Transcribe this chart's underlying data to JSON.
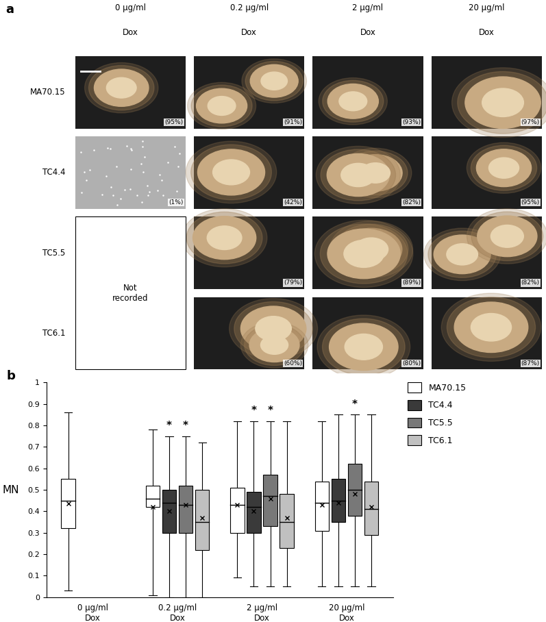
{
  "panel_a_label": "a",
  "panel_b_label": "b",
  "col_headers": [
    "0 μg/ml\nDox",
    "0.2 μg/ml\nDox",
    "2 μg/ml\nDox",
    "20 μg/ml\nDox"
  ],
  "row_labels": [
    "MA70.15",
    "TC4.4",
    "TC5.5",
    "TC6.1"
  ],
  "percentages": {
    "MA70.15": [
      "(95%)",
      "(91%)",
      "(93%)",
      "(97%)"
    ],
    "TC4.4": [
      "(1%)",
      "(42%)",
      "(82%)",
      "(95%)"
    ],
    "TC5.5": [
      null,
      "(79%)",
      "(89%)",
      "(82%)"
    ],
    "TC6.1": [
      null,
      "(60%)",
      "(80%)",
      "(87%)"
    ]
  },
  "not_recorded_label": "Not\nrecorded",
  "ylabel": "MN",
  "xlabel_groups": [
    "0 μg/ml\nDox",
    "0.2 μg/ml\nDox",
    "2 μg/ml\nDox",
    "20 μg/ml\nDox"
  ],
  "ylim": [
    0,
    1
  ],
  "yticks": [
    0,
    0.1,
    0.2,
    0.3,
    0.4,
    0.5,
    0.6,
    0.7,
    0.8,
    0.9,
    1
  ],
  "legend_labels": [
    "MA70.15",
    "TC4.4",
    "TC5.5",
    "TC6.1"
  ],
  "legend_colors": [
    "#ffffff",
    "#3a3a3a",
    "#787878",
    "#c0c0c0"
  ],
  "box_colors": [
    "#ffffff",
    "#3a3a3a",
    "#787878",
    "#c0c0c0"
  ],
  "groups": [
    {
      "label": "0 μg/ml\nDox",
      "boxes": [
        {
          "series": "MA70.15",
          "q1": 0.32,
          "median": 0.45,
          "q3": 0.55,
          "whisker_low": 0.03,
          "whisker_high": 0.86,
          "mean": 0.435
        },
        {
          "series": "TC4.4",
          "q1": null,
          "median": null,
          "q3": null,
          "whisker_low": null,
          "whisker_high": null,
          "mean": null
        },
        {
          "series": "TC5.5",
          "q1": null,
          "median": null,
          "q3": null,
          "whisker_low": null,
          "whisker_high": null,
          "mean": null
        },
        {
          "series": "TC6.1",
          "q1": null,
          "median": null,
          "q3": null,
          "whisker_low": null,
          "whisker_high": null,
          "mean": null
        }
      ],
      "asterisks": []
    },
    {
      "label": "0.2 μg/ml\nDox",
      "boxes": [
        {
          "series": "MA70.15",
          "q1": 0.42,
          "median": 0.46,
          "q3": 0.52,
          "whisker_low": 0.01,
          "whisker_high": 0.78,
          "mean": 0.42
        },
        {
          "series": "TC4.4",
          "q1": 0.3,
          "median": 0.44,
          "q3": 0.5,
          "whisker_low": 0.0,
          "whisker_high": 0.75,
          "mean": 0.4
        },
        {
          "series": "TC5.5",
          "q1": 0.3,
          "median": 0.43,
          "q3": 0.52,
          "whisker_low": 0.0,
          "whisker_high": 0.75,
          "mean": 0.43
        },
        {
          "series": "TC6.1",
          "q1": 0.22,
          "median": 0.35,
          "q3": 0.5,
          "whisker_low": 0.0,
          "whisker_high": 0.72,
          "mean": 0.37
        }
      ],
      "asterisks": [
        "TC4.4",
        "TC5.5"
      ]
    },
    {
      "label": "2 μg/ml\nDox",
      "boxes": [
        {
          "series": "MA70.15",
          "q1": 0.3,
          "median": 0.43,
          "q3": 0.51,
          "whisker_low": 0.09,
          "whisker_high": 0.82,
          "mean": 0.43
        },
        {
          "series": "TC4.4",
          "q1": 0.3,
          "median": 0.42,
          "q3": 0.49,
          "whisker_low": 0.05,
          "whisker_high": 0.82,
          "mean": 0.4
        },
        {
          "series": "TC5.5",
          "q1": 0.33,
          "median": 0.47,
          "q3": 0.57,
          "whisker_low": 0.05,
          "whisker_high": 0.82,
          "mean": 0.46
        },
        {
          "series": "TC6.1",
          "q1": 0.23,
          "median": 0.35,
          "q3": 0.48,
          "whisker_low": 0.05,
          "whisker_high": 0.82,
          "mean": 0.37
        }
      ],
      "asterisks": [
        "TC4.4",
        "TC5.5"
      ]
    },
    {
      "label": "20 μg/ml\nDox",
      "boxes": [
        {
          "series": "MA70.15",
          "q1": 0.31,
          "median": 0.44,
          "q3": 0.54,
          "whisker_low": 0.05,
          "whisker_high": 0.82,
          "mean": 0.43
        },
        {
          "series": "TC4.4",
          "q1": 0.35,
          "median": 0.45,
          "q3": 0.55,
          "whisker_low": 0.05,
          "whisker_high": 0.85,
          "mean": 0.44
        },
        {
          "series": "TC5.5",
          "q1": 0.38,
          "median": 0.5,
          "q3": 0.62,
          "whisker_low": 0.05,
          "whisker_high": 0.85,
          "mean": 0.48
        },
        {
          "series": "TC6.1",
          "q1": 0.29,
          "median": 0.41,
          "q3": 0.54,
          "whisker_low": 0.05,
          "whisker_high": 0.85,
          "mean": 0.42
        }
      ],
      "asterisks": [
        "TC5.5"
      ]
    }
  ],
  "bg_color": "#ffffff",
  "fig_width": 7.97,
  "fig_height": 9.08
}
